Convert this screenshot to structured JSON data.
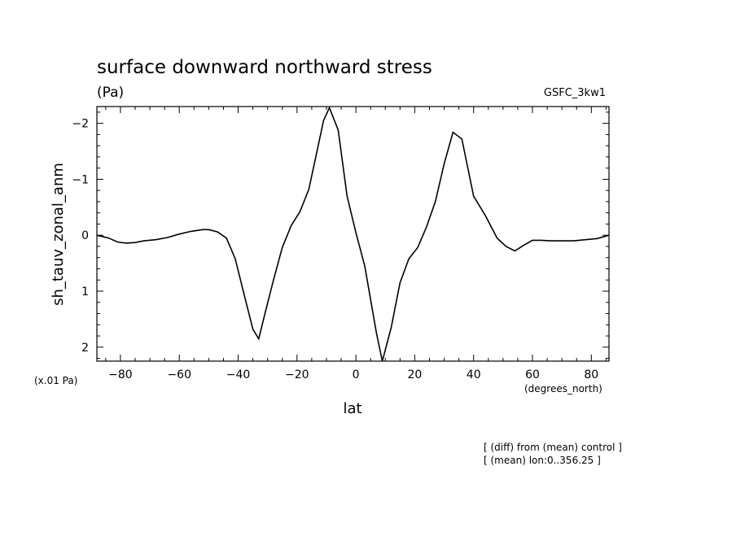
{
  "chart_data": {
    "type": "line",
    "title": "surface downward northward stress",
    "units_label": "(Pa)",
    "model_label": "GSFC_3kw1",
    "ylabel": "sh_tauv_zonal_anm",
    "xlabel": "lat",
    "y_scale_label": "(x.01 Pa)",
    "x_units_label": "(degrees_north)",
    "notes": [
      "[ (diff) from (mean) control ]",
      "[ (mean) lon:0..356.25 ]"
    ],
    "xlim": [
      -88,
      86
    ],
    "ylim": [
      2.25,
      -2.3
    ],
    "y_inverted": true,
    "x_ticks": [
      -80,
      -60,
      -40,
      -20,
      0,
      20,
      40,
      60,
      80
    ],
    "y_ticks": [
      -2,
      -1,
      0,
      1,
      2
    ],
    "series": [
      {
        "x": [
          -88,
          -84,
          -81,
          -78,
          -75,
          -72,
          -68,
          -64,
          -60,
          -56,
          -52,
          -50,
          -47,
          -44,
          -41,
          -38,
          -35,
          -33,
          -31,
          -28,
          -25,
          -22,
          -19,
          -16,
          -13,
          -11,
          -9,
          -6,
          -3,
          0,
          3,
          5,
          7,
          9,
          12,
          15,
          18,
          21,
          24,
          27,
          30,
          33,
          36,
          40,
          44,
          48,
          51,
          54,
          57,
          60,
          63,
          66,
          70,
          74,
          78,
          82,
          86
        ],
        "y": [
          0.0,
          0.05,
          0.12,
          0.14,
          0.13,
          0.1,
          0.08,
          0.04,
          -0.02,
          -0.07,
          -0.1,
          -0.1,
          -0.06,
          0.05,
          0.42,
          1.05,
          1.68,
          1.85,
          1.42,
          0.8,
          0.22,
          -0.17,
          -0.42,
          -0.82,
          -1.55,
          -2.05,
          -2.28,
          -1.88,
          -0.7,
          -0.05,
          0.55,
          1.15,
          1.75,
          2.25,
          1.65,
          0.85,
          0.42,
          0.22,
          -0.15,
          -0.6,
          -1.28,
          -1.84,
          -1.72,
          -0.7,
          -0.35,
          0.05,
          0.2,
          0.28,
          0.18,
          0.09,
          0.09,
          0.1,
          0.1,
          0.1,
          0.08,
          0.06,
          0.0
        ]
      }
    ]
  }
}
